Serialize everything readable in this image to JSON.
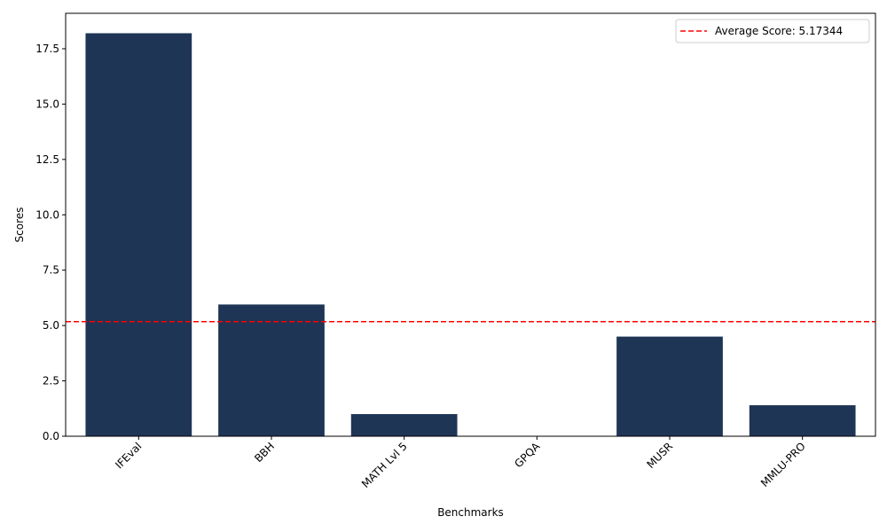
{
  "chart_data": {
    "type": "bar",
    "categories": [
      "IFEval",
      "BBH",
      "MATH Lvl 5",
      "GPQA",
      "MUSR",
      "MMLU-PRO"
    ],
    "values": [
      18.2,
      5.95,
      1.0,
      0.0,
      4.5,
      1.4
    ],
    "xlabel": "Benchmarks",
    "ylabel": "Scores",
    "ylim": [
      0,
      19.1
    ],
    "yticks": [
      0.0,
      2.5,
      5.0,
      7.5,
      10.0,
      12.5,
      15.0,
      17.5
    ],
    "ytick_labels": [
      "0.0",
      "2.5",
      "5.0",
      "7.5",
      "10.0",
      "12.5",
      "15.0",
      "17.5"
    ],
    "reference_line": {
      "value": 5.17344,
      "label": "Average Score: 5.17344",
      "color": "#ff0000",
      "style": "dashed"
    },
    "bar_color": "#1f3556",
    "legend_position": "top-right",
    "grid": false
  }
}
